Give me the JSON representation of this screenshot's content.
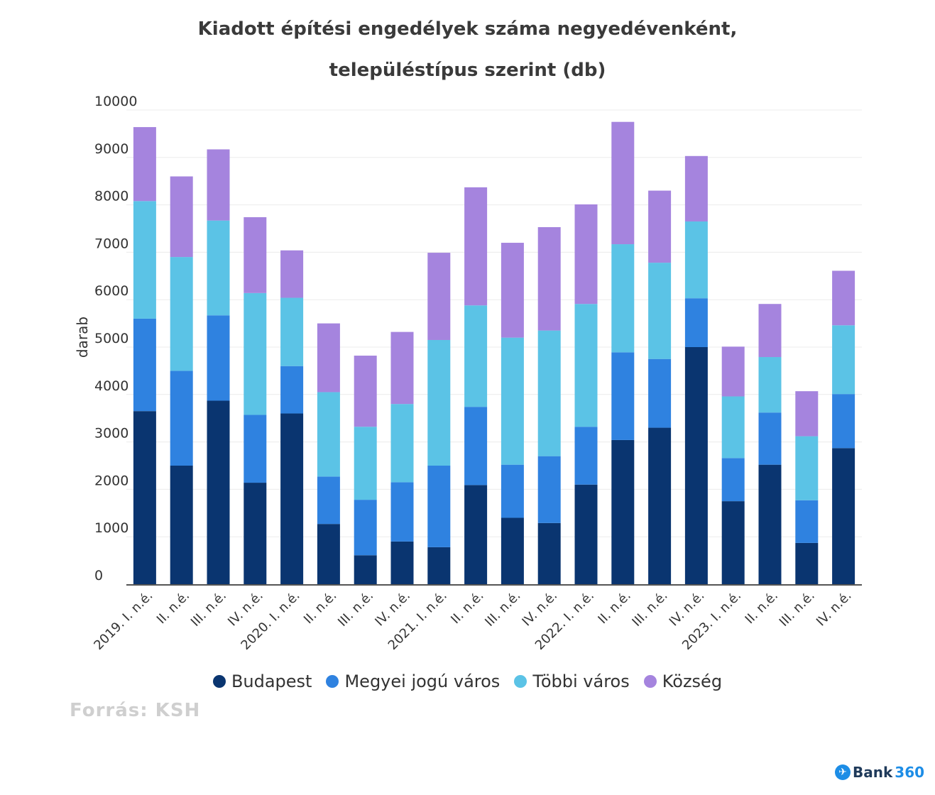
{
  "title_line1": "Kiadott építési engedélyek száma negyedévenként,",
  "title_line2": "településtípus szerint (db)",
  "source": "Forrás: KSH",
  "logo": {
    "icon": "paper-plane-icon",
    "text_main": "Bank",
    "text_accent": "360"
  },
  "chart_data": {
    "type": "bar",
    "stacked": true,
    "title": "Kiadott építési engedélyek száma negyedévenként, településtípus szerint (db)",
    "xlabel": "",
    "ylabel": "darab",
    "ylim": [
      0,
      10000
    ],
    "yticks": [
      0,
      1000,
      2000,
      3000,
      4000,
      5000,
      6000,
      7000,
      8000,
      9000,
      10000
    ],
    "grid": true,
    "legend_position": "bottom",
    "categories": [
      "2019. I. n.é.",
      "II. n.é.",
      "III. n.é.",
      "IV. n.é.",
      "2020. I. n.é.",
      "II. n.é.",
      "III. n.é.",
      "IV. n.é.",
      "2021. I. n.é.",
      "II. n.é.",
      "III. n.é.",
      "IV. n.é.",
      "2022. I. n.é.",
      "II. n.é.",
      "III. n.é.",
      "IV. n.é.",
      "2023. I. n.é.",
      "II. n.é.",
      "III. n.é.",
      "IV. n.é."
    ],
    "series": [
      {
        "name": "Budapest",
        "color": "#0a3570",
        "values": [
          3650,
          2500,
          3870,
          2140,
          3600,
          1270,
          610,
          900,
          780,
          2090,
          1400,
          1290,
          2100,
          3040,
          3300,
          5000,
          1750,
          2520,
          870,
          2870
        ]
      },
      {
        "name": "Megyei jogú város",
        "color": "#2f82e0",
        "values": [
          1950,
          2000,
          1800,
          1430,
          1000,
          1000,
          1170,
          1250,
          1720,
          1650,
          1120,
          1410,
          1220,
          1850,
          1450,
          1030,
          910,
          1100,
          900,
          1140
        ]
      },
      {
        "name": "Többi város",
        "color": "#5bc3e6",
        "values": [
          2480,
          2400,
          2000,
          2570,
          1440,
          1780,
          1540,
          1650,
          2650,
          2140,
          2680,
          2650,
          2590,
          2280,
          2030,
          1620,
          1300,
          1170,
          1350,
          1450
        ]
      },
      {
        "name": "Község",
        "color": "#a584de",
        "values": [
          1560,
          1700,
          1500,
          1600,
          1000,
          1450,
          1500,
          1520,
          1840,
          2490,
          2000,
          2180,
          2100,
          2580,
          1520,
          1380,
          1050,
          1120,
          950,
          1150
        ]
      }
    ]
  }
}
